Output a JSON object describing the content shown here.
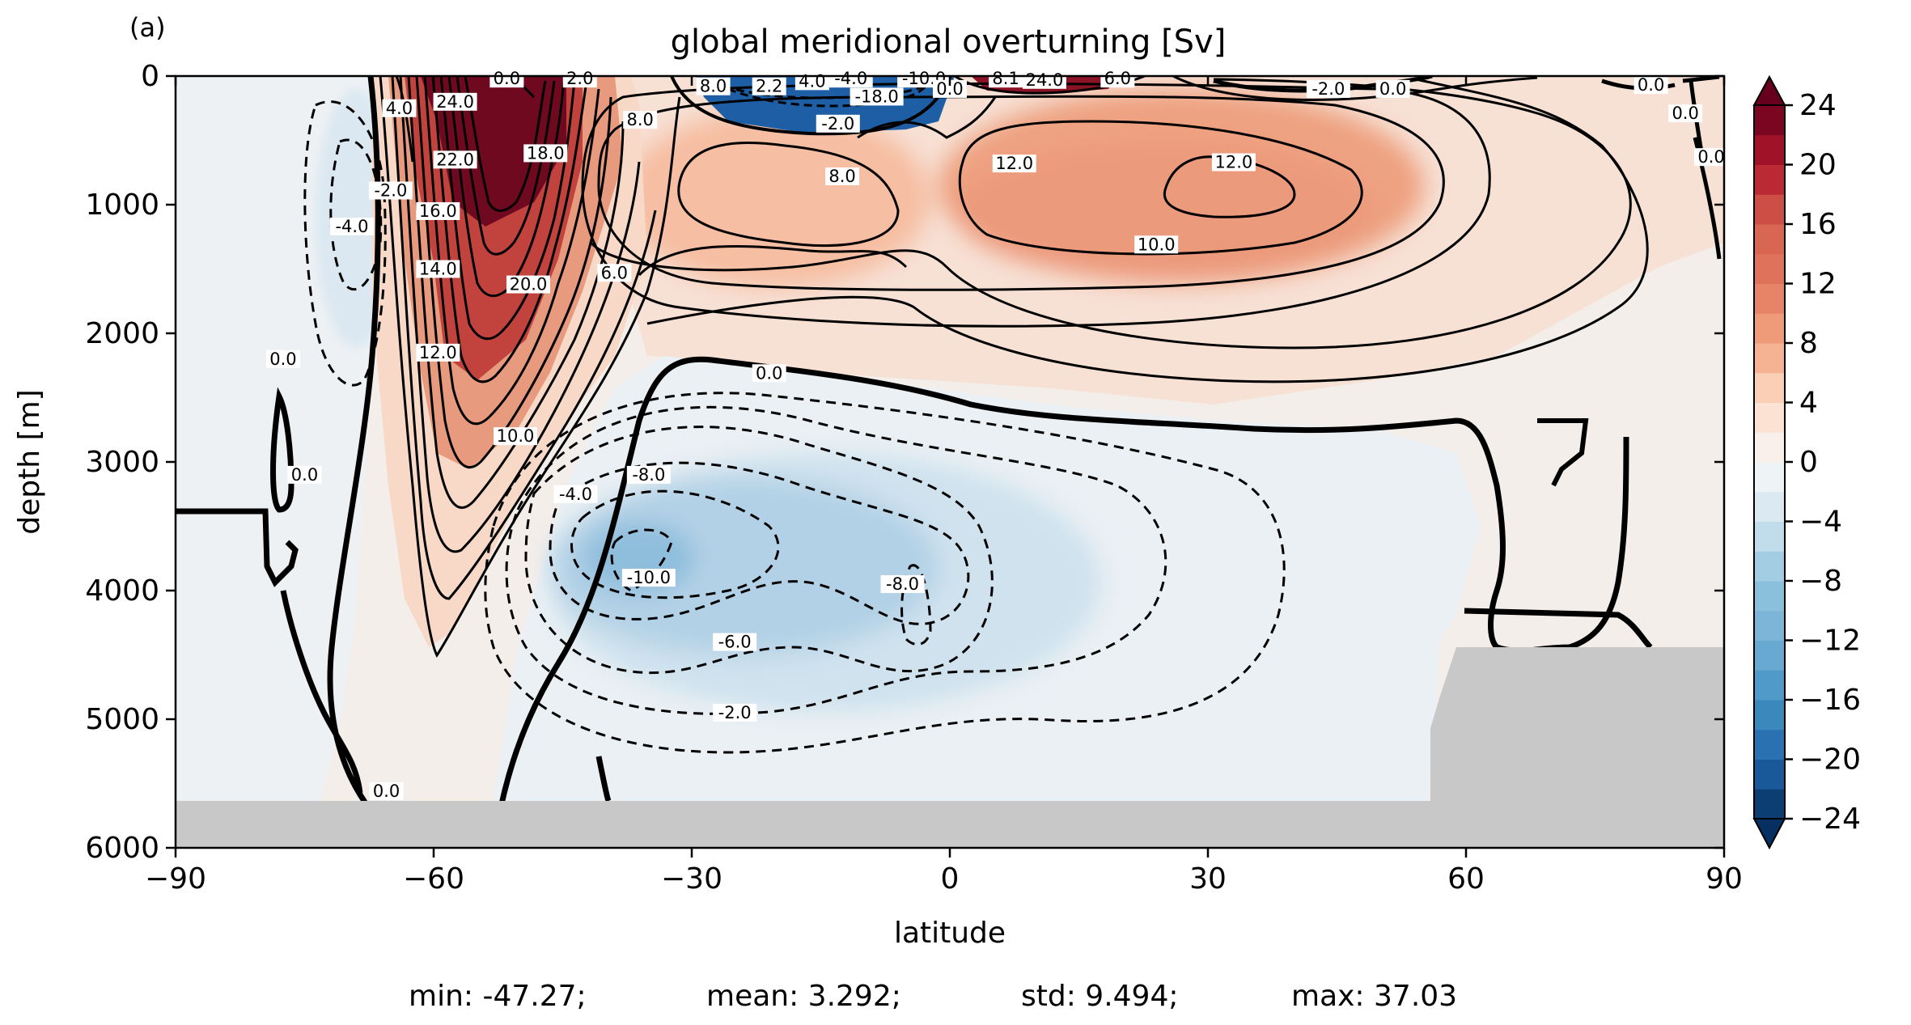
{
  "panel_label": "(a)",
  "title": "global meridional overturning [Sv]",
  "xlabel": "latitude",
  "ylabel": "depth [m]",
  "stats": {
    "min": "min: -47.27;",
    "mean": "mean: 3.292;",
    "std": "std: 9.494;",
    "max": "max: 37.03"
  },
  "colors": {
    "land": "#c8c8c8",
    "contour": "#000000",
    "frame": "#000000"
  },
  "chart_data": {
    "type": "heatmap",
    "title": "global meridional overturning [Sv]",
    "xlabel": "latitude",
    "ylabel": "depth [m]",
    "xlim": [
      -90,
      90
    ],
    "ylim": [
      6000,
      0
    ],
    "x_ticks": [
      -90,
      -60,
      -30,
      0,
      30,
      60,
      90
    ],
    "x_tick_labels": [
      "−90",
      "−60",
      "−30",
      "0",
      "30",
      "60",
      "90"
    ],
    "y_ticks": [
      0,
      1000,
      2000,
      3000,
      4000,
      5000,
      6000
    ],
    "y_tick_labels": [
      "0",
      "1000",
      "2000",
      "3000",
      "4000",
      "5000",
      "6000"
    ],
    "colorbar": {
      "levels": [
        -24,
        -22,
        -20,
        -18,
        -16,
        -14,
        -12,
        -10,
        -8,
        -6,
        -4,
        -2,
        0,
        2,
        4,
        6,
        8,
        10,
        12,
        14,
        16,
        18,
        20,
        22,
        24
      ],
      "tick_values": [
        -24,
        -20,
        -16,
        -12,
        -8,
        -4,
        0,
        4,
        8,
        12,
        16,
        20,
        24
      ],
      "tick_labels": [
        "−24",
        "−20",
        "−16",
        "−12",
        "−8",
        "−4",
        "0",
        "4",
        "8",
        "12",
        "16",
        "20",
        "24"
      ],
      "colormap": "RdBu_r",
      "extend": "both"
    },
    "features": [
      {
        "name": "southern-ocean-deacon-cell",
        "lat": -52,
        "depth": 300,
        "value": 24
      },
      {
        "name": "north-atlantic-overturning-cell",
        "lat": 33,
        "depth": 900,
        "value": 12
      },
      {
        "name": "tropical-cell",
        "lat": -14,
        "depth": 900,
        "value": 8
      },
      {
        "name": "abyssal-cell",
        "lat": -38,
        "depth": 3700,
        "value": -10
      },
      {
        "name": "antarctic-cell",
        "lat": -70,
        "depth": 1200,
        "value": -4
      },
      {
        "name": "surface-subtropical-cell",
        "lat": -15,
        "depth": 50,
        "value": -18
      }
    ],
    "contour_labels": [
      {
        "text": "0.0",
        "lat": -51.5,
        "depth": 20
      },
      {
        "text": "2.0",
        "lat": -43,
        "depth": 20
      },
      {
        "text": "4.0",
        "lat": -64,
        "depth": 250
      },
      {
        "text": "24.0",
        "lat": -57.5,
        "depth": 200
      },
      {
        "text": "22.0",
        "lat": -57.5,
        "depth": 650
      },
      {
        "text": "16.0",
        "lat": -59.5,
        "depth": 1050
      },
      {
        "text": "14.0",
        "lat": -59.5,
        "depth": 1500
      },
      {
        "text": "12.0",
        "lat": -59.5,
        "depth": 2150
      },
      {
        "text": "18.0",
        "lat": -47,
        "depth": 600
      },
      {
        "text": "8.0",
        "lat": -36,
        "depth": 340
      },
      {
        "text": "20.0",
        "lat": -49,
        "depth": 1620
      },
      {
        "text": "6.0",
        "lat": -39,
        "depth": 1530
      },
      {
        "text": "-2.0",
        "lat": -65,
        "depth": 890
      },
      {
        "text": "-4.0",
        "lat": -69.5,
        "depth": 1170
      },
      {
        "text": "0.0",
        "lat": -77.5,
        "depth": 2200
      },
      {
        "text": "0.0",
        "lat": -75,
        "depth": 3100
      },
      {
        "text": "10.0",
        "lat": -50.5,
        "depth": 2800
      },
      {
        "text": "-4.0",
        "lat": -43.5,
        "depth": 3250
      },
      {
        "text": "-8.0",
        "lat": -35,
        "depth": 3100
      },
      {
        "text": "-10.0",
        "lat": -35,
        "depth": 3900
      },
      {
        "text": "-6.0",
        "lat": -25,
        "depth": 4400
      },
      {
        "text": "-2.0",
        "lat": -25,
        "depth": 4950
      },
      {
        "text": "-8.0",
        "lat": -5.5,
        "depth": 3950
      },
      {
        "text": "0.0",
        "lat": -65.5,
        "depth": 5560
      },
      {
        "text": "0.0",
        "lat": -21,
        "depth": 2310
      },
      {
        "text": "8.0",
        "lat": -12.5,
        "depth": 780
      },
      {
        "text": "-18.0",
        "lat": -8.5,
        "depth": 160
      },
      {
        "text": "-10.0",
        "lat": -3,
        "depth": 20
      },
      {
        "text": "-2.0",
        "lat": -13,
        "depth": 370
      },
      {
        "text": "-4.0",
        "lat": -11.5,
        "depth": 20
      },
      {
        "text": "8.0",
        "lat": -27.5,
        "depth": 80
      },
      {
        "text": "2.2",
        "lat": -21,
        "depth": 80
      },
      {
        "text": "4.0",
        "lat": -16,
        "depth": 40
      },
      {
        "text": "0.0",
        "lat": 0,
        "depth": 100
      },
      {
        "text": "8.1",
        "lat": 6.5,
        "depth": 20
      },
      {
        "text": "24.0",
        "lat": 11,
        "depth": 30
      },
      {
        "text": "6.0",
        "lat": 19.5,
        "depth": 20
      },
      {
        "text": "12.0",
        "lat": 7.5,
        "depth": 680
      },
      {
        "text": "12.0",
        "lat": 33,
        "depth": 670
      },
      {
        "text": "10.0",
        "lat": 24,
        "depth": 1310
      },
      {
        "text": "-2.0",
        "lat": 44,
        "depth": 100
      },
      {
        "text": "0.0",
        "lat": 51.5,
        "depth": 100
      },
      {
        "text": "0.0",
        "lat": 81.5,
        "depth": 70
      },
      {
        "text": "0.0",
        "lat": 85.5,
        "depth": 290
      },
      {
        "text": "0.0",
        "lat": 88.5,
        "depth": 630
      }
    ]
  }
}
